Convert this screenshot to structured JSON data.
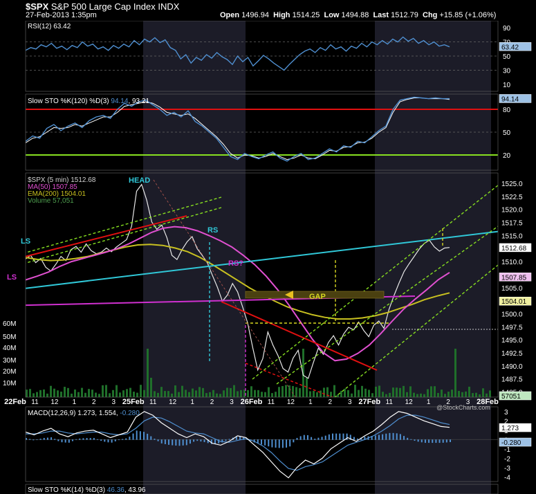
{
  "header": {
    "symbol": "$SPX",
    "name": "S&P 500 Large Cap Index",
    "exchange": "INDX",
    "datetime": "27-Feb-2013 1:35pm",
    "open_label": "Open",
    "open": "1496.94",
    "high_label": "High",
    "high": "1514.25",
    "low_label": "Low",
    "low": "1494.88",
    "last_label": "Last",
    "last": "1512.79",
    "chg_label": "Chg",
    "chg": "+15.85 (+1.06%)",
    "watermark": "@StockCharts.com"
  },
  "colors": {
    "background": "#000000",
    "band": "#1c1c28",
    "line": "#4f8fd0",
    "rsi_fill": "#2a5a8f",
    "red": "#e01010",
    "green": "#88e020",
    "cyan": "#30c8d8",
    "magenta": "#d030d0",
    "yellow": "#d8d820",
    "ema": "#c8c020",
    "ma": "#e050d0"
  },
  "chart_data": [
    {
      "type": "line",
      "panel": "rsi",
      "legend": "RSI(12) 63.42",
      "y_ticks": [
        "90",
        "70",
        "50",
        "30",
        "10"
      ],
      "ylim": [
        0,
        100
      ],
      "levels": [
        70,
        50,
        30
      ],
      "last_value": "63.42",
      "series": [
        {
          "values": [
            58,
            62,
            60,
            66,
            63,
            68,
            61,
            64,
            59,
            65,
            62,
            70,
            64,
            67,
            60,
            63,
            58,
            65,
            61,
            67,
            63,
            72,
            66,
            74,
            70,
            76,
            69,
            73,
            62,
            58,
            46,
            52,
            40,
            48,
            44,
            52,
            47,
            55,
            49,
            45,
            38,
            50,
            42,
            48,
            36,
            43,
            51,
            46,
            40,
            35,
            30,
            38,
            45,
            52,
            57,
            60,
            55,
            62,
            58,
            66,
            60,
            63,
            57,
            64,
            61,
            68,
            63,
            70,
            66,
            72,
            67,
            74,
            70,
            77,
            71,
            75,
            68,
            72,
            66,
            70,
            64,
            66,
            63
          ]
        }
      ]
    },
    {
      "type": "line",
      "panel": "slow_sto",
      "legend": "Slow STO %K(120) %D(3)",
      "legend_k": "94.14",
      "legend_d": "93.21",
      "y_ticks": [
        "80",
        "50",
        "20"
      ],
      "ylim": [
        0,
        100
      ],
      "levels": [
        80,
        50,
        20
      ],
      "last_value": "94.14",
      "series": [
        {
          "name": "%K",
          "values": [
            38,
            45,
            42,
            55,
            60,
            52,
            58,
            62,
            56,
            65,
            70,
            72,
            68,
            80,
            88,
            84,
            90,
            92,
            86,
            80,
            72,
            76,
            70,
            78,
            64,
            58,
            50,
            42,
            30,
            18,
            14,
            22,
            18,
            15,
            20,
            24,
            16,
            12,
            18,
            22,
            14,
            16,
            22,
            28,
            24,
            32,
            30,
            38,
            36,
            44,
            52,
            58,
            80,
            92,
            94,
            96,
            95,
            94,
            95,
            94,
            94
          ]
        },
        {
          "name": "%D",
          "values": [
            36,
            42,
            44,
            50,
            56,
            55,
            56,
            60,
            58,
            62,
            66,
            70,
            70,
            76,
            84,
            86,
            88,
            90,
            88,
            83,
            76,
            74,
            72,
            74,
            68,
            60,
            52,
            44,
            34,
            22,
            16,
            20,
            19,
            16,
            18,
            22,
            18,
            14,
            16,
            20,
            16,
            15,
            20,
            26,
            25,
            30,
            31,
            36,
            37,
            42,
            50,
            56,
            76,
            90,
            93,
            95,
            95,
            94,
            94,
            94,
            93
          ]
        }
      ]
    },
    {
      "type": "line",
      "panel": "price",
      "legend": [
        {
          "label": "$SPX (5 min) 1512.68",
          "color": "#a0a0a0"
        },
        {
          "label": "MA(50) 1507.85",
          "color": "#e050d0"
        },
        {
          "label": "EMA(200) 1504.01",
          "color": "#c8c020"
        },
        {
          "label": "Volume 57,051",
          "color": "#2f7a2f"
        }
      ],
      "y_ticks": [
        "1525.0",
        "1522.5",
        "1520.0",
        "1517.5",
        "1515.0",
        "1512.5",
        "1510.0",
        "1507.5",
        "1505.0",
        "1502.5",
        "1500.0",
        "1497.5",
        "1495.0",
        "1492.5",
        "1490.0",
        "1487.5",
        "1485.0"
      ],
      "ylim": [
        1484,
        1527
      ],
      "volume_ticks": [
        "60M",
        "50M",
        "40M",
        "30M",
        "20M",
        "10M"
      ],
      "x_ticks": [
        "22Feb",
        "11",
        "12",
        "1",
        "2",
        "3",
        "25Feb",
        "11",
        "12",
        "1",
        "2",
        "3",
        "26Feb",
        "11",
        "12",
        "1",
        "2",
        "3",
        "27Feb",
        "11",
        "12",
        "1",
        "2",
        "3",
        "28Feb"
      ],
      "value_labels": [
        {
          "text": "1512.68",
          "value": 1512.68
        },
        {
          "text": "1507.85",
          "value": 1507.85
        },
        {
          "text": "1504.01",
          "value": 1504.01
        },
        {
          "text": "57051",
          "value": null
        }
      ],
      "annotations": [
        "LS",
        "HEAD",
        "RS",
        "RS?",
        "GAP",
        "LS"
      ],
      "series": [
        {
          "name": "$SPX",
          "values": [
            1510.5,
            1511.2,
            1509.8,
            1510.6,
            1508.9,
            1508.2,
            1509.5,
            1511.0,
            1510.2,
            1512.3,
            1512.9,
            1511.8,
            1513.4,
            1512.1,
            1511.5,
            1511.8,
            1512.6,
            1511.9,
            1512.8,
            1513.5,
            1514.2,
            1516.8,
            1523.5,
            1524.8,
            1521.8,
            1517.6,
            1516.2,
            1517.0,
            1514.6,
            1511.2,
            1510.4,
            1512.3,
            1513.8,
            1514.8,
            1512.5,
            1511.2,
            1509.8,
            1507.4,
            1505.1,
            1502.4,
            1503.6,
            1505.8,
            1504.2,
            1501.3,
            1498.2,
            1493.5,
            1489.2,
            1491.4,
            1496.5,
            1494.0,
            1492.0,
            1489.5,
            1488.8,
            1491.5,
            1493.0,
            1488.2,
            1487.6,
            1490.6,
            1493.4,
            1492.2,
            1494.5,
            1495.8,
            1494.0,
            1496.1,
            1497.4,
            1496.9,
            1498.4,
            1496.8,
            1495.6,
            1497.8,
            1498.6,
            1497.2,
            1500.8,
            1503.5,
            1505.9,
            1508.1,
            1509.6,
            1511.0,
            1512.4,
            1513.5,
            1514.1,
            1512.8,
            1512.0,
            1512.6,
            1512.7
          ]
        },
        {
          "name": "MA(50)",
          "values": [
            1506.5,
            1507.2,
            1508.0,
            1509.1,
            1510.0,
            1510.6,
            1511.2,
            1511.8,
            1512.5,
            1513.4,
            1514.5,
            1515.6,
            1516.4,
            1516.7,
            1516.5,
            1515.9,
            1515.0,
            1514.0,
            1512.8,
            1511.2,
            1509.4,
            1507.2,
            1504.6,
            1501.6,
            1498.4,
            1495.2,
            1492.5,
            1491.0,
            1491.3,
            1492.4,
            1494.0,
            1496.2,
            1498.6,
            1500.9,
            1502.8,
            1504.6,
            1506.5,
            1507.9
          ]
        },
        {
          "name": "EMA(200)",
          "values": [
            1510.8,
            1510.4,
            1510.2,
            1510.3,
            1510.6,
            1511.0,
            1511.6,
            1512.2,
            1512.8,
            1513.2,
            1513.3,
            1513.1,
            1512.6,
            1511.9,
            1510.8,
            1509.4,
            1507.9,
            1506.4,
            1504.9,
            1503.6,
            1502.4,
            1501.3,
            1500.5,
            1499.8,
            1499.3,
            1499.0,
            1499.0,
            1499.2,
            1499.6,
            1500.2,
            1501.0,
            1501.8,
            1502.7,
            1503.4,
            1504.0
          ]
        }
      ]
    },
    {
      "type": "line",
      "panel": "macd",
      "legend": "MACD(12,26,9)",
      "legend_macd": "1.273",
      "legend_signal": "1.554",
      "legend_hist": "-0.280",
      "y_ticks": [
        "3",
        "2",
        "1",
        "0",
        "-1",
        "-2",
        "-3",
        "-4"
      ],
      "ylim": [
        -4.5,
        3.5
      ],
      "value_labels": [
        "1.273",
        "-0.280"
      ],
      "series": [
        {
          "name": "MACD",
          "values": [
            0.8,
            0.5,
            0.9,
            1.2,
            0.6,
            0.3,
            0.7,
            0.9,
            1.0,
            0.6,
            0.2,
            0.5,
            0.8,
            2.4,
            3.0,
            2.6,
            1.8,
            1.2,
            0.6,
            0.2,
            0.6,
            0.3,
            -0.4,
            -0.6,
            -0.2,
            0.4,
            0.2,
            -0.6,
            -1.4,
            -2.4,
            -3.4,
            -4.1,
            -3.0,
            -2.2,
            -2.6,
            -2.0,
            -1.0,
            -0.4,
            0.2,
            -0.2,
            0.4,
            0.9,
            1.6,
            2.4,
            3.0,
            2.8,
            2.4,
            2.0,
            1.7,
            1.4,
            1.3
          ]
        },
        {
          "name": "Signal",
          "values": [
            0.6,
            0.6,
            0.7,
            0.9,
            0.9,
            0.7,
            0.6,
            0.7,
            0.8,
            0.8,
            0.6,
            0.5,
            0.6,
            1.2,
            2.0,
            2.4,
            2.3,
            1.9,
            1.4,
            0.9,
            0.7,
            0.6,
            0.2,
            -0.2,
            -0.3,
            -0.1,
            0.1,
            -0.2,
            -0.7,
            -1.4,
            -2.3,
            -3.1,
            -3.3,
            -2.9,
            -2.7,
            -2.4,
            -1.8,
            -1.2,
            -0.6,
            -0.3,
            0.0,
            0.4,
            0.9,
            1.5,
            2.2,
            2.6,
            2.6,
            2.4,
            2.1,
            1.8,
            1.6
          ]
        }
      ]
    }
  ],
  "footer": {
    "legend": "Slow STO %K(14) %D(3)",
    "legend_k": "46.36",
    "legend_d": "43.96"
  }
}
